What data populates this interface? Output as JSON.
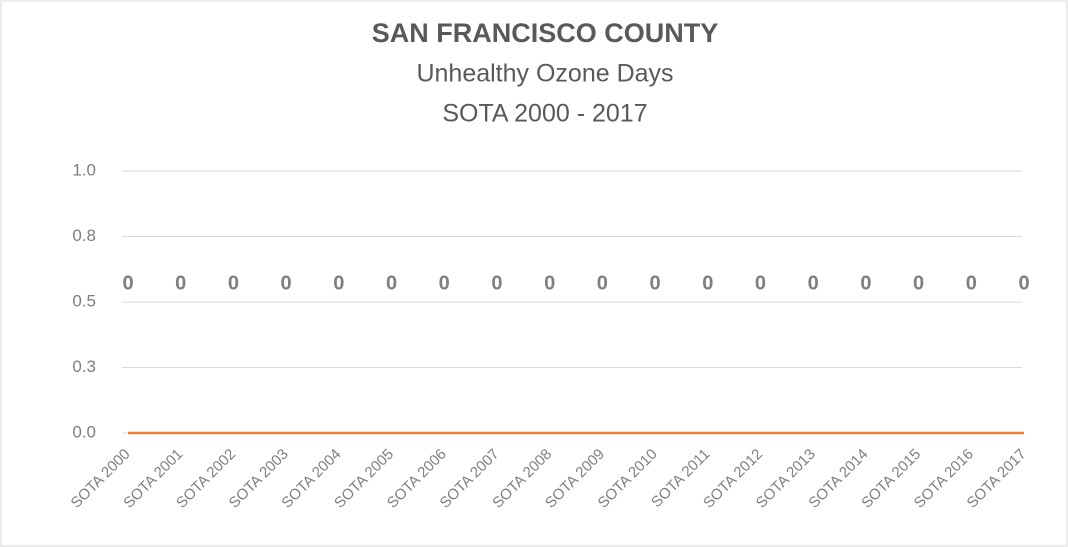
{
  "chart_data": {
    "type": "line",
    "title": "SAN FRANCISCO COUNTY",
    "subtitle": [
      "Unhealthy Ozone Days",
      "SOTA 2000 - 2017"
    ],
    "categories": [
      "SOTA 2000",
      "SOTA 2001",
      "SOTA 2002",
      "SOTA 2003",
      "SOTA 2004",
      "SOTA 2005",
      "SOTA 2006",
      "SOTA 2007",
      "SOTA 2008",
      "SOTA 2009",
      "SOTA 2010",
      "SOTA 2011",
      "SOTA 2012",
      "SOTA 2013",
      "SOTA 2014",
      "SOTA 2015",
      "SOTA 2016",
      "SOTA 2017"
    ],
    "series": [
      {
        "color": "#ed7d31",
        "values": [
          0,
          0,
          0,
          0,
          0,
          0,
          0,
          0,
          0,
          0,
          0,
          0,
          0,
          0,
          0,
          0,
          0,
          0
        ]
      }
    ],
    "ylim": [
      0,
      1
    ],
    "yticks": [
      {
        "value": 0,
        "label": "0.0"
      },
      {
        "value": 0.25,
        "label": "0.3"
      },
      0.5,
      {
        "value": 0.75,
        "label": "0.8"
      },
      {
        "value": 1,
        "label": "1.0"
      }
    ],
    "grid": true
  }
}
